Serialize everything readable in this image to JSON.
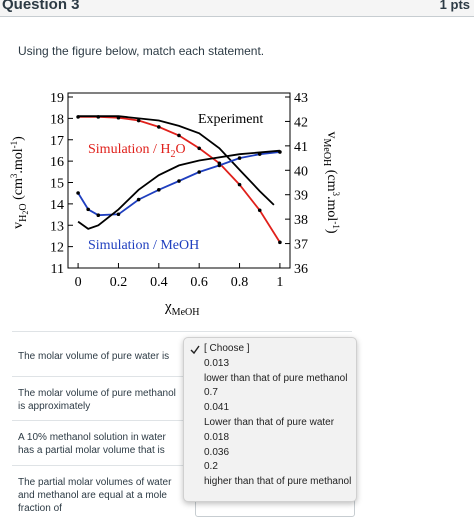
{
  "header": {
    "title": "Question 3",
    "points": "1 pts"
  },
  "prompt": "Using the figure below, match each statement.",
  "figure": {
    "type": "line",
    "xlim": [
      -0.05,
      1.05
    ],
    "xticks": [
      0,
      0.2,
      0.4,
      0.6,
      0.8,
      1
    ],
    "ylim": [
      11,
      19
    ],
    "yticks": [
      11,
      12,
      13,
      14,
      15,
      16,
      17,
      18,
      19
    ],
    "y2lim": [
      36,
      43
    ],
    "y2ticks": [
      36,
      37,
      38,
      39,
      40,
      41,
      42,
      43
    ],
    "x_label": [
      {
        "t": "χ"
      },
      {
        "t": "MeOH",
        "s": "sub"
      }
    ],
    "y_label": [
      {
        "t": "v"
      },
      {
        "t": "H",
        "s": "sub"
      },
      {
        "t": "2",
        "s": "subsub"
      },
      {
        "t": "O",
        "s": "sub"
      },
      {
        "t": " (cm"
      },
      {
        "t": "3",
        "s": "sup"
      },
      {
        "t": ".mol"
      },
      {
        "t": "-1",
        "s": "sup"
      },
      {
        "t": ")"
      }
    ],
    "y2_label": [
      {
        "t": "v"
      },
      {
        "t": "MeOH",
        "s": "sub"
      },
      {
        "t": " (cm"
      },
      {
        "t": "3",
        "s": "sup"
      },
      {
        "t": ".mol"
      },
      {
        "t": "-1",
        "s": "sup"
      },
      {
        "t": ")"
      }
    ],
    "annotations": [
      {
        "parts": [
          {
            "t": "Experiment"
          }
        ],
        "color": "#000000"
      },
      {
        "parts": [
          {
            "t": "Simulation / H"
          },
          {
            "t": "2",
            "s": "sub"
          },
          {
            "t": "O"
          }
        ],
        "color": "#e0201b"
      },
      {
        "parts": [
          {
            "t": "Simulation / MeOH"
          }
        ],
        "color": "#1f3fbf"
      }
    ],
    "series": [
      {
        "color": "#e0201b",
        "markers": true,
        "x": [
          0,
          0.1,
          0.2,
          0.3,
          0.4,
          0.5,
          0.6,
          0.7,
          0.8,
          0.9,
          1.0
        ],
        "values": [
          18.07,
          18.07,
          18.03,
          17.9,
          17.6,
          17.2,
          16.6,
          15.9,
          14.9,
          13.7,
          12.2
        ]
      },
      {
        "color": "#000000",
        "markers": false,
        "x": [
          0,
          0.2,
          0.4,
          0.5,
          0.6,
          0.7,
          0.8,
          0.9,
          0.97
        ],
        "values": [
          18.1,
          18.1,
          17.9,
          17.65,
          17.3,
          16.6,
          15.6,
          14.6,
          13.95
        ]
      },
      {
        "color": "#1f3fbf",
        "markers": true,
        "axis": "y2",
        "x": [
          0,
          0.05,
          0.1,
          0.2,
          0.3,
          0.4,
          0.5,
          0.6,
          0.7,
          0.8,
          0.9,
          1.0
        ],
        "values": [
          39.07,
          38.4,
          38.16,
          38.2,
          38.8,
          39.2,
          39.56,
          39.93,
          40.2,
          40.5,
          40.66,
          40.75
        ]
      },
      {
        "color": "#000000",
        "markers": false,
        "axis": "y2",
        "x": [
          0,
          0.05,
          0.1,
          0.2,
          0.3,
          0.4,
          0.5,
          0.6,
          0.8,
          1.0
        ],
        "values": [
          37.9,
          37.6,
          37.75,
          38.4,
          39.2,
          39.8,
          40.2,
          40.4,
          40.66,
          40.8
        ]
      }
    ]
  },
  "statements": [
    "The molar volume of pure water is",
    "The molar volume of pure methanol is approximately",
    "A 10% methanol solution in water has a partial molar volume that is",
    "The partial molar volumes of water and methanol are equal at a mole fraction of"
  ],
  "options": [
    "[ Choose ]",
    "0.013",
    "lower than that of pure methanol",
    "0.7",
    "0.041",
    "Lower than that of pure water",
    "0.018",
    "0.036",
    "0.2",
    "higher than that of pure methanol"
  ]
}
